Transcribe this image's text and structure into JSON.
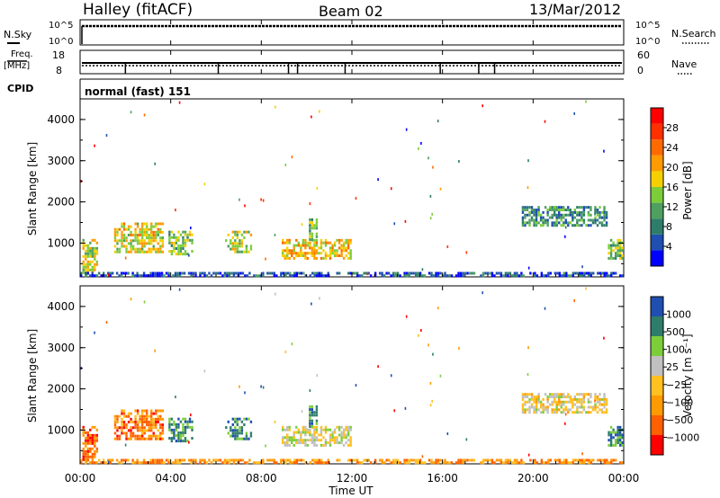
{
  "header": {
    "station": "Halley (fitACF)",
    "beam": "Beam 02",
    "date": "13/Mar/2012"
  },
  "strips": {
    "nsky_label": "N.Sky",
    "nsearch_label": "N.Search",
    "nsky_ticks": [
      "10^5",
      "10^0"
    ],
    "nsearch_ticks": [
      "10^5",
      "10^0"
    ],
    "freq_label": "Freq.",
    "freq_unit": "[MHz]",
    "freq_ticks": [
      "18",
      "8"
    ],
    "nave_label": "Nave",
    "nave_ticks": [
      "60",
      "0"
    ],
    "cpid_label": "CPID",
    "cpid_value": "normal (fast) 151"
  },
  "x_axis": {
    "label": "Time UT",
    "ticks": [
      "00:00",
      "04:00",
      "08:00",
      "12:00",
      "16:00",
      "20:00",
      "00:00"
    ]
  },
  "colors": {
    "power": [
      "#0000ff",
      "#1f4fb0",
      "#2e7d6a",
      "#4fa060",
      "#7ccd3a",
      "#f5d000",
      "#ff9a00",
      "#ff6a00",
      "#ff3000",
      "#ff0000"
    ],
    "velocity": [
      "#ff0000",
      "#ff6000",
      "#ff9a00",
      "#ffc020",
      "#c0c0c0",
      "#7ccd3a",
      "#2e7d6a",
      "#1f4fb0"
    ]
  },
  "chart_data": [
    {
      "type": "heatmap",
      "panel": "power",
      "ylabel": "Slant Range [km]",
      "xlim_hours": [
        0,
        24
      ],
      "ylim_km": [
        180,
        4500
      ],
      "y_ticks": [
        "4000",
        "3000",
        "2000",
        "1000"
      ],
      "y_tick_values": [
        4000,
        3000,
        2000,
        1000
      ],
      "colorbar_label": "Power [dB]",
      "colorbar_ticks": [
        "28",
        "24",
        "20",
        "16",
        "12",
        "8",
        "4"
      ],
      "echo_regions": [
        {
          "t0": 0.1,
          "t1": 0.8,
          "r0": 250,
          "r1": 1100,
          "level": 0.5
        },
        {
          "t0": 1.5,
          "t1": 3.7,
          "r0": 750,
          "r1": 1500,
          "level": 0.55
        },
        {
          "t0": 3.9,
          "t1": 5.0,
          "r0": 700,
          "r1": 1300,
          "level": 0.45
        },
        {
          "t0": 6.4,
          "t1": 7.6,
          "r0": 750,
          "r1": 1300,
          "level": 0.5
        },
        {
          "t0": 8.9,
          "t1": 12.0,
          "r0": 600,
          "r1": 1100,
          "level": 0.6
        },
        {
          "t0": 10.1,
          "t1": 10.5,
          "r0": 1050,
          "r1": 1600,
          "level": 0.4
        },
        {
          "t0": 19.5,
          "t1": 23.3,
          "r0": 1400,
          "r1": 1900,
          "level": 0.3
        },
        {
          "t0": 23.3,
          "t1": 24.0,
          "r0": 600,
          "r1": 1100,
          "level": 0.4
        },
        {
          "t0": 0.0,
          "t1": 24.0,
          "r0": 180,
          "r1": 300,
          "level": 0.15
        }
      ]
    },
    {
      "type": "heatmap",
      "panel": "velocity",
      "ylabel": "Slant Range [km]",
      "xlabel": "Time UT",
      "xlim_hours": [
        0,
        24
      ],
      "ylim_km": [
        180,
        4500
      ],
      "y_ticks": [
        "4000",
        "3000",
        "2000",
        "1000"
      ],
      "y_tick_values": [
        4000,
        3000,
        2000,
        1000
      ],
      "colorbar_label": "Velocity [m s⁻¹]",
      "colorbar_ticks": [
        "1000",
        "500",
        "100",
        "25",
        "−25",
        "−100",
        "−500",
        "−1000"
      ],
      "echo_regions": [
        {
          "t0": 0.1,
          "t1": 0.8,
          "r0": 250,
          "r1": 1100,
          "level": 0.2
        },
        {
          "t0": 1.5,
          "t1": 3.7,
          "r0": 750,
          "r1": 1500,
          "level": 0.25
        },
        {
          "t0": 3.9,
          "t1": 5.0,
          "r0": 700,
          "r1": 1300,
          "level": 0.8
        },
        {
          "t0": 6.4,
          "t1": 7.6,
          "r0": 750,
          "r1": 1300,
          "level": 0.85
        },
        {
          "t0": 8.9,
          "t1": 12.0,
          "r0": 600,
          "r1": 1100,
          "level": 0.55
        },
        {
          "t0": 10.1,
          "t1": 10.5,
          "r0": 1050,
          "r1": 1600,
          "level": 0.8
        },
        {
          "t0": 19.5,
          "t1": 23.3,
          "r0": 1400,
          "r1": 1900,
          "level": 0.5
        },
        {
          "t0": 23.3,
          "t1": 24.0,
          "r0": 600,
          "r1": 1100,
          "level": 0.8
        },
        {
          "t0": 0.0,
          "t1": 24.0,
          "r0": 180,
          "r1": 300,
          "level": 0.3
        }
      ]
    }
  ]
}
